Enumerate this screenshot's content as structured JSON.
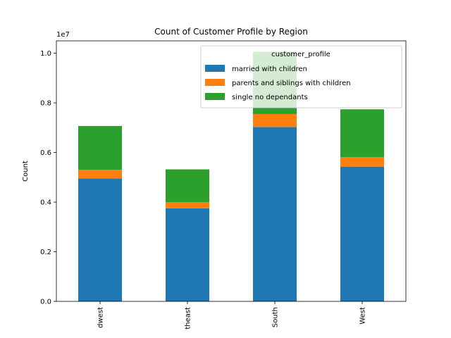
{
  "chart_data": {
    "type": "bar",
    "stacked": true,
    "title": "Count of Customer Profile by Region",
    "xlabel": "",
    "ylabel": "Count",
    "y_scale_label": "1e7",
    "ylim": [
      0,
      1.05
    ],
    "yticks": [
      "0.0",
      "0.2",
      "0.4",
      "0.6",
      "0.8",
      "1.0"
    ],
    "categories": [
      "dwest",
      "theast",
      "South",
      "West"
    ],
    "series": [
      {
        "name": "married with children",
        "color": "#1f77b4",
        "values": [
          0.495,
          0.375,
          0.703,
          0.543
        ]
      },
      {
        "name": "parents and siblings with children",
        "color": "#ff7f0e",
        "values": [
          0.035,
          0.025,
          0.052,
          0.038
        ]
      },
      {
        "name": "single no dependants",
        "color": "#2ca02c",
        "values": [
          0.177,
          0.132,
          0.251,
          0.193
        ]
      }
    ],
    "legend": {
      "title": "customer_profile",
      "placement": "top-right"
    },
    "grid": false
  }
}
